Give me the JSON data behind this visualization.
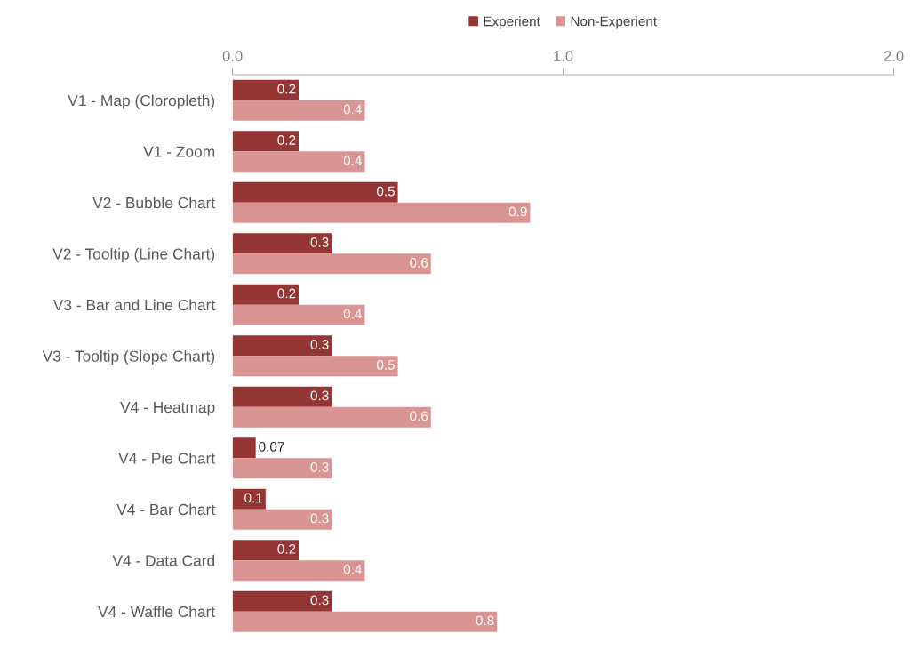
{
  "chart_data": {
    "type": "bar",
    "orientation": "horizontal",
    "categories": [
      "V1 - Map (Cloropleth)",
      "V1 - Zoom",
      "V2 - Bubble Chart",
      "V2 - Tooltip (Line Chart)",
      "V3 - Bar and Line Chart",
      "V3 - Tooltip (Slope Chart)",
      "V4 - Heatmap",
      "V4 - Pie Chart",
      "V4 - Bar Chart",
      "V4 - Data Card",
      "V4 - Waffle Chart"
    ],
    "series": [
      {
        "name": "Experient",
        "color": "#943634",
        "values": [
          0.2,
          0.2,
          0.5,
          0.3,
          0.2,
          0.3,
          0.3,
          0.07,
          0.1,
          0.2,
          0.3
        ]
      },
      {
        "name": "Non-Experient",
        "color": "#d99594",
        "values": [
          0.4,
          0.4,
          0.9,
          0.6,
          0.4,
          0.5,
          0.6,
          0.3,
          0.3,
          0.4,
          0.8
        ]
      }
    ],
    "xlim": [
      0,
      2
    ],
    "xticks": [
      {
        "value": 0,
        "label": "0.0"
      },
      {
        "value": 1,
        "label": "1.0"
      },
      {
        "value": 2,
        "label": "2.0"
      }
    ],
    "data_labels": true,
    "legend": "top",
    "grid": false
  }
}
